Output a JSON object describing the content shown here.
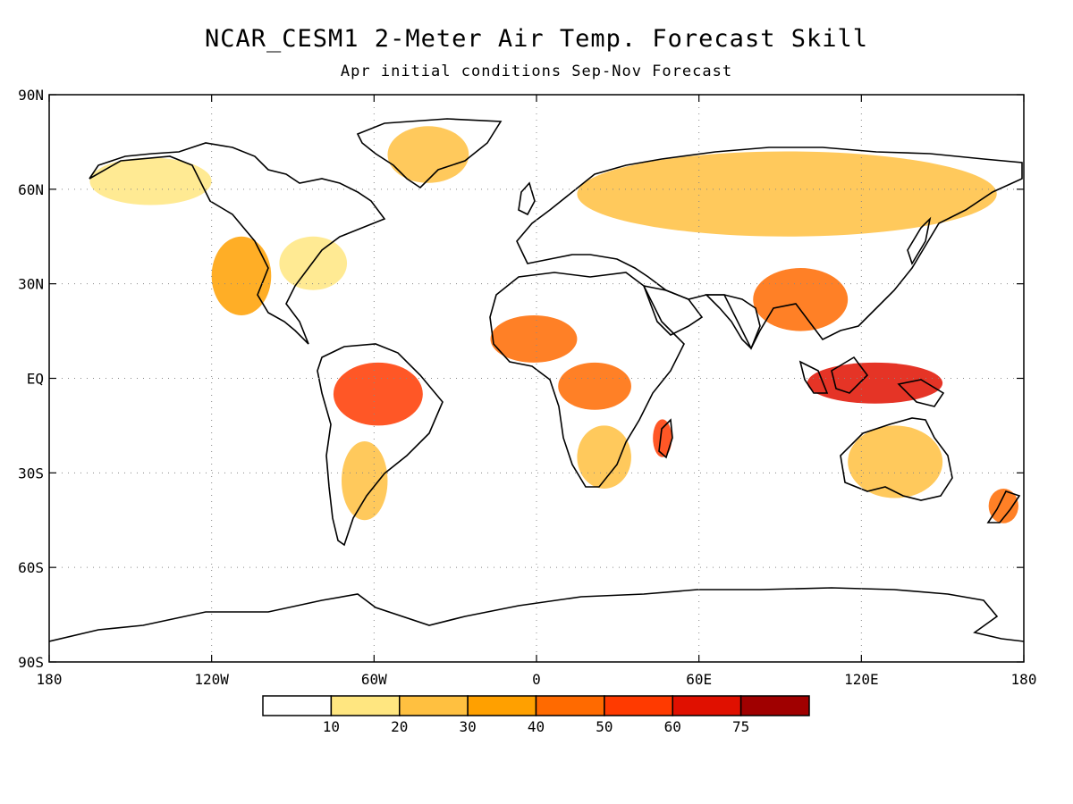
{
  "title": "NCAR_CESM1 2-Meter Air Temp. Forecast Skill",
  "subtitle": "Apr initial conditions  Sep-Nov Forecast",
  "map": {
    "lat_range": [
      -90,
      90
    ],
    "lon_range": [
      -180,
      180
    ],
    "lat_ticks": [
      "90N",
      "60N",
      "30N",
      "EQ",
      "30S",
      "60S",
      "90S"
    ],
    "lon_ticks": [
      "180",
      "120W",
      "60W",
      "0",
      "60E",
      "120E",
      "180"
    ],
    "grid": "dotted",
    "land_outline_color": "#000000"
  },
  "colorbar": {
    "levels": [
      "10",
      "20",
      "30",
      "40",
      "50",
      "60",
      "75"
    ],
    "colors": [
      "#ffffff",
      "#ffe680",
      "#ffc040",
      "#ffa000",
      "#ff6a00",
      "#ff3a00",
      "#e01000",
      "#a00000"
    ]
  },
  "regions": [
    {
      "name": "alaska-canada-west",
      "level": 1,
      "lon": [
        -165,
        -120
      ],
      "lat": [
        55,
        70
      ]
    },
    {
      "name": "western-us-mexico",
      "level": 3,
      "lon": [
        -120,
        -98
      ],
      "lat": [
        20,
        45
      ]
    },
    {
      "name": "eastern-us",
      "level": 1,
      "lon": [
        -95,
        -70
      ],
      "lat": [
        28,
        45
      ]
    },
    {
      "name": "greenland",
      "level": 2,
      "lon": [
        -55,
        -25
      ],
      "lat": [
        62,
        80
      ]
    },
    {
      "name": "amazon",
      "level": 5,
      "lon": [
        -75,
        -42
      ],
      "lat": [
        -15,
        5
      ]
    },
    {
      "name": "south-america-south",
      "level": 2,
      "lon": [
        -72,
        -55
      ],
      "lat": [
        -45,
        -20
      ]
    },
    {
      "name": "west-africa",
      "level": 4,
      "lon": [
        -17,
        15
      ],
      "lat": [
        5,
        20
      ]
    },
    {
      "name": "central-africa",
      "level": 4,
      "lon": [
        8,
        35
      ],
      "lat": [
        -10,
        5
      ]
    },
    {
      "name": "southern-africa",
      "level": 2,
      "lon": [
        15,
        35
      ],
      "lat": [
        -35,
        -15
      ]
    },
    {
      "name": "eurasia-north",
      "level": 2,
      "lon": [
        15,
        170
      ],
      "lat": [
        45,
        72
      ]
    },
    {
      "name": "india-china",
      "level": 4,
      "lon": [
        80,
        115
      ],
      "lat": [
        15,
        35
      ]
    },
    {
      "name": "maritime-continent",
      "level": 6,
      "lon": [
        100,
        150
      ],
      "lat": [
        -8,
        5
      ]
    },
    {
      "name": "australia",
      "level": 2,
      "lon": [
        115,
        150
      ],
      "lat": [
        -38,
        -15
      ]
    },
    {
      "name": "madagascar",
      "level": 5,
      "lon": [
        43,
        50
      ],
      "lat": [
        -25,
        -13
      ]
    },
    {
      "name": "new-zealand",
      "level": 4,
      "lon": [
        167,
        178
      ],
      "lat": [
        -46,
        -35
      ]
    }
  ]
}
